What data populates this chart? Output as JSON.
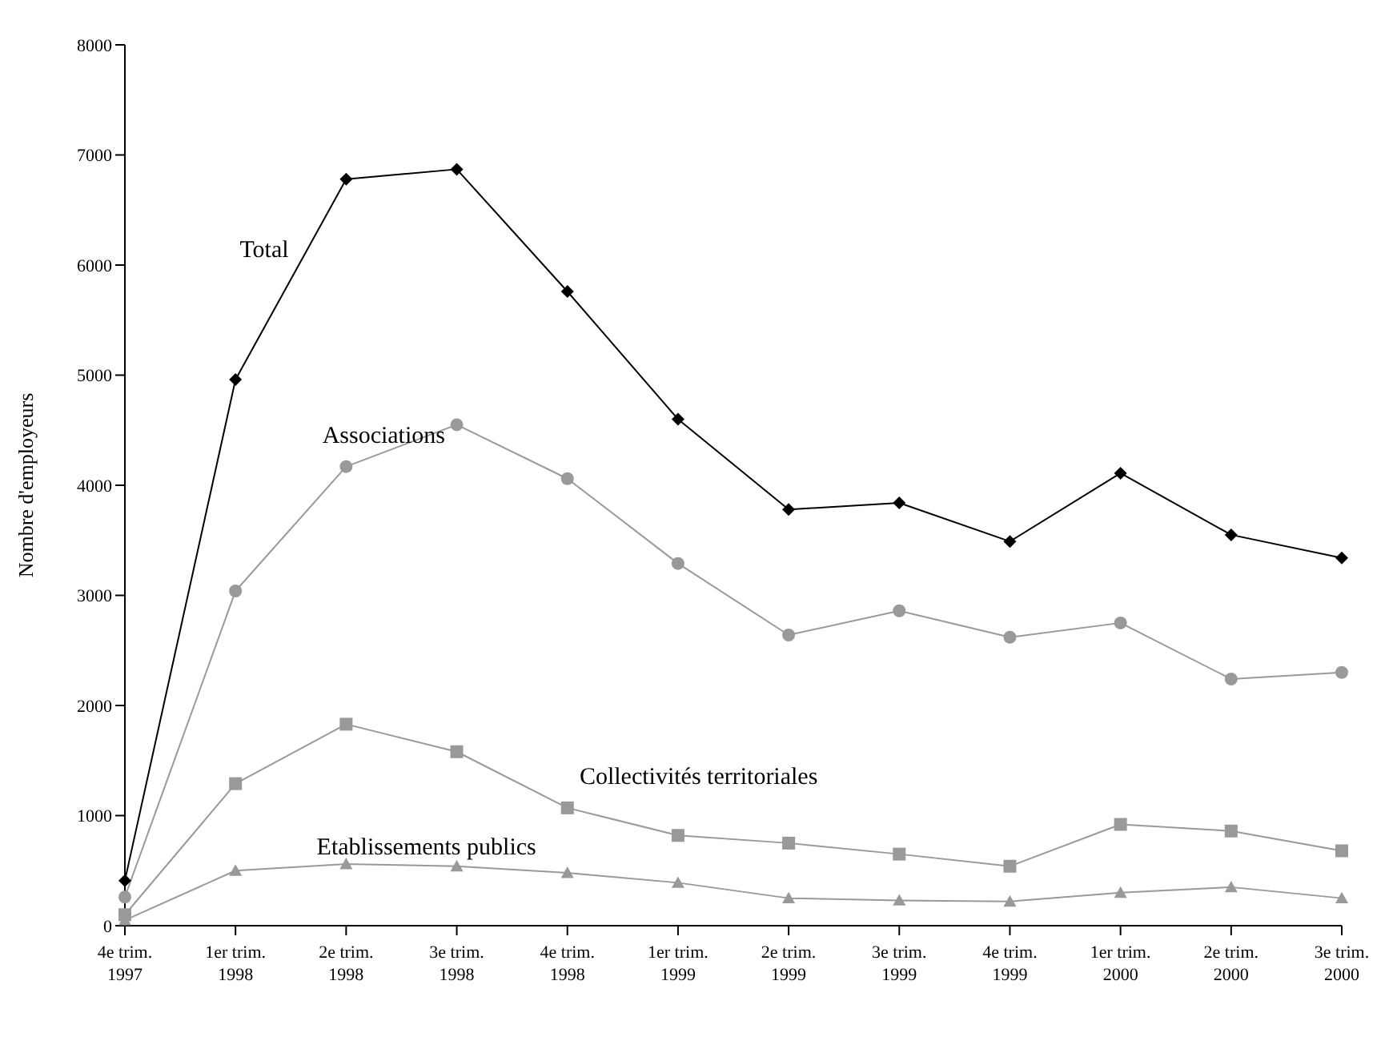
{
  "chart_data": {
    "type": "line",
    "ylabel": "Nombre d'employeurs",
    "categories": [
      "4e trim. 1997",
      "1er trim. 1998",
      "2e trim. 1998",
      "3e trim. 1998",
      "4e trim. 1998",
      "1er trim. 1999",
      "2e trim. 1999",
      "3e trim. 1999",
      "4e trim. 1999",
      "1er trim. 2000",
      "2e trim. 2000",
      "3e trim. 2000"
    ],
    "series": [
      {
        "name": "Total",
        "color": "#000000",
        "marker": "diamond",
        "values": [
          410,
          4960,
          6780,
          6870,
          5760,
          4600,
          3780,
          3840,
          3490,
          4110,
          3550,
          3340
        ]
      },
      {
        "name": "Associations",
        "color": "#999999",
        "marker": "circle",
        "values": [
          260,
          3040,
          4170,
          4550,
          4060,
          3290,
          2640,
          2860,
          2620,
          2750,
          2240,
          2300
        ]
      },
      {
        "name": "Collectivités territoriales",
        "color": "#999999",
        "marker": "square",
        "values": [
          100,
          1290,
          1830,
          1580,
          1070,
          820,
          750,
          650,
          540,
          920,
          860,
          680
        ]
      },
      {
        "name": "Etablissements publics",
        "color": "#999999",
        "marker": "triangle",
        "values": [
          50,
          500,
          560,
          540,
          480,
          390,
          250,
          230,
          220,
          300,
          350,
          250
        ]
      }
    ],
    "ylim": [
      0,
      8000
    ],
    "yticks": [
      0,
      1000,
      2000,
      3000,
      4000,
      5000,
      6000,
      7000,
      8000
    ],
    "grid": false,
    "legend": false
  }
}
